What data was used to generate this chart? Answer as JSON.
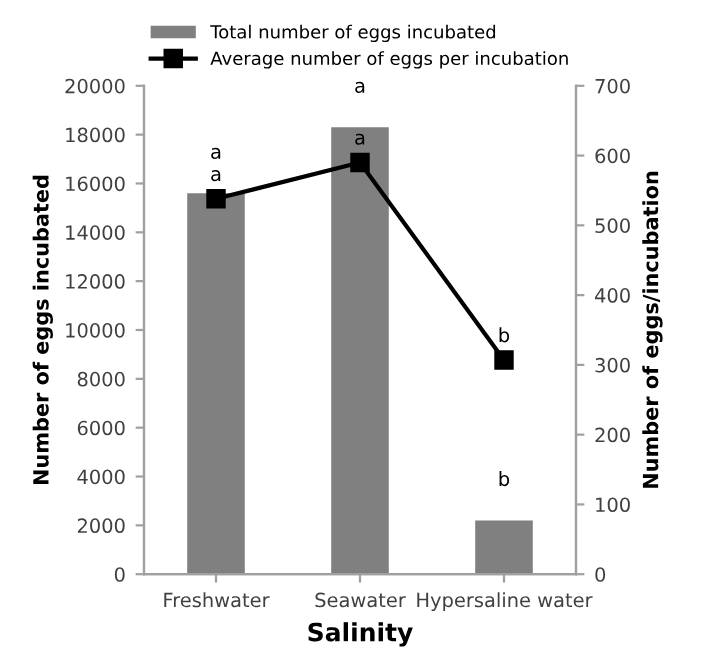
{
  "chart_data": {
    "type": "bar",
    "xlabel": "Salinity",
    "ylabel": "Number of eggs incubated",
    "y2label": "Number of eggs/incubation",
    "categories": [
      "Freshwater",
      "Seawater",
      "Hypersaline water"
    ],
    "series": [
      {
        "name": "Total number of eggs incubated",
        "color": "#808080",
        "values": [
          15600,
          18300,
          2200
        ]
      },
      {
        "name": "Average number of eggs per incubation",
        "type": "line",
        "axis": "y2",
        "color": "#000000",
        "marker": "square",
        "values": [
          538,
          590,
          307
        ]
      }
    ],
    "ylim": [
      0,
      20000
    ],
    "yticks": [
      0,
      2000,
      4000,
      6000,
      8000,
      10000,
      12000,
      14000,
      16000,
      18000,
      20000
    ],
    "y2lim": [
      0,
      700
    ],
    "y2ticks": [
      0,
      100,
      200,
      300,
      400,
      500,
      600,
      700
    ],
    "legend": "top",
    "grid": false,
    "annotations": [
      {
        "text": "a",
        "x": "Freshwater",
        "y": 15600
      },
      {
        "text": "a",
        "x": "Seawater",
        "y": 18300
      },
      {
        "text": "b",
        "x": "Hypersaline water",
        "y": 2200
      },
      {
        "text": "a",
        "x": "Freshwater",
        "y": 15370
      },
      {
        "text": "a",
        "x": "Seawater",
        "y": 16860
      },
      {
        "text": "b",
        "x": "Hypersaline water",
        "y": 8770
      }
    ]
  }
}
